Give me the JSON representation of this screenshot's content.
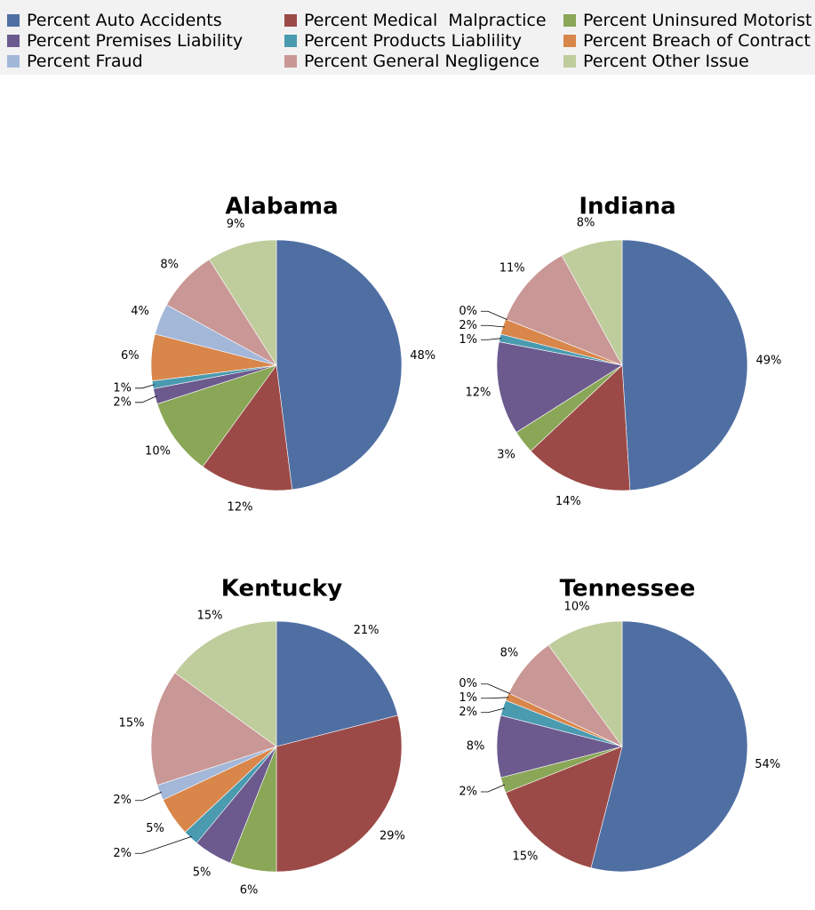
{
  "legend": {
    "items": [
      {
        "label": "Percent Auto Accidents",
        "color": "#4f6fa3"
      },
      {
        "label": "Percent Premises Liability",
        "color": "#6c5a8e"
      },
      {
        "label": "Percent Fraud",
        "color": "#a3b7d9"
      },
      {
        "label": "Percent Medical  Malpractice",
        "color": "#9c4a47"
      },
      {
        "label": "Percent Products Liablility",
        "color": "#4a9ab0"
      },
      {
        "label": "Percent General Negligence",
        "color": "#c99795"
      },
      {
        "label": "Percent Uninsured Motorist",
        "color": "#8aa657"
      },
      {
        "label": "Percent Breach of Contract",
        "color": "#d8864a"
      },
      {
        "label": "Percent Other Issue",
        "color": "#bfcc9c"
      }
    ]
  },
  "chart_data": [
    {
      "type": "pie",
      "title": "Alabama",
      "categories": [
        "Percent Auto Accidents",
        "Percent Medical  Malpractice",
        "Percent Uninsured Motorist",
        "Percent Premises Liability",
        "Percent Products Liablility",
        "Percent Breach of Contract",
        "Percent Fraud",
        "Percent General Negligence",
        "Percent Other Issue"
      ],
      "values": [
        48,
        12,
        10,
        2,
        1,
        6,
        4,
        8,
        9
      ],
      "labels": [
        "48%",
        "12%",
        "10%",
        "2%",
        "1%",
        "6%",
        "4%",
        "8%",
        "9%"
      ]
    },
    {
      "type": "pie",
      "title": "Indiana",
      "categories": [
        "Percent Auto Accidents",
        "Percent Medical  Malpractice",
        "Percent Uninsured Motorist",
        "Percent Premises Liability",
        "Percent Products Liablility",
        "Percent Breach of Contract",
        "Percent Fraud",
        "Percent General Negligence",
        "Percent Other Issue"
      ],
      "values": [
        49,
        14,
        3,
        12,
        1,
        2,
        0,
        11,
        8
      ],
      "labels": [
        "49%",
        "14%",
        "3%",
        "12%",
        "1%",
        "2%",
        "0%",
        "11%",
        "8%"
      ]
    },
    {
      "type": "pie",
      "title": "Kentucky",
      "categories": [
        "Percent Auto Accidents",
        "Percent Medical  Malpractice",
        "Percent Uninsured Motorist",
        "Percent Premises Liability",
        "Percent Products Liablility",
        "Percent Breach of Contract",
        "Percent Fraud",
        "Percent General Negligence",
        "Percent Other Issue"
      ],
      "values": [
        21,
        29,
        6,
        5,
        2,
        5,
        2,
        15,
        15
      ],
      "labels": [
        "21%",
        "29%",
        "6%",
        "5%",
        "2%",
        "5%",
        "2%",
        "15%",
        "15%"
      ]
    },
    {
      "type": "pie",
      "title": "Tennessee",
      "categories": [
        "Percent Auto Accidents",
        "Percent Medical  Malpractice",
        "Percent Uninsured Motorist",
        "Percent Premises Liability",
        "Percent Products Liablility",
        "Percent Breach of Contract",
        "Percent Fraud",
        "Percent General Negligence",
        "Percent Other Issue"
      ],
      "values": [
        54,
        15,
        2,
        8,
        2,
        1,
        0,
        8,
        10
      ],
      "labels": [
        "54%",
        "15%",
        "2%",
        "8%",
        "2%",
        "1%",
        "0%",
        "8%",
        "10%"
      ]
    }
  ]
}
